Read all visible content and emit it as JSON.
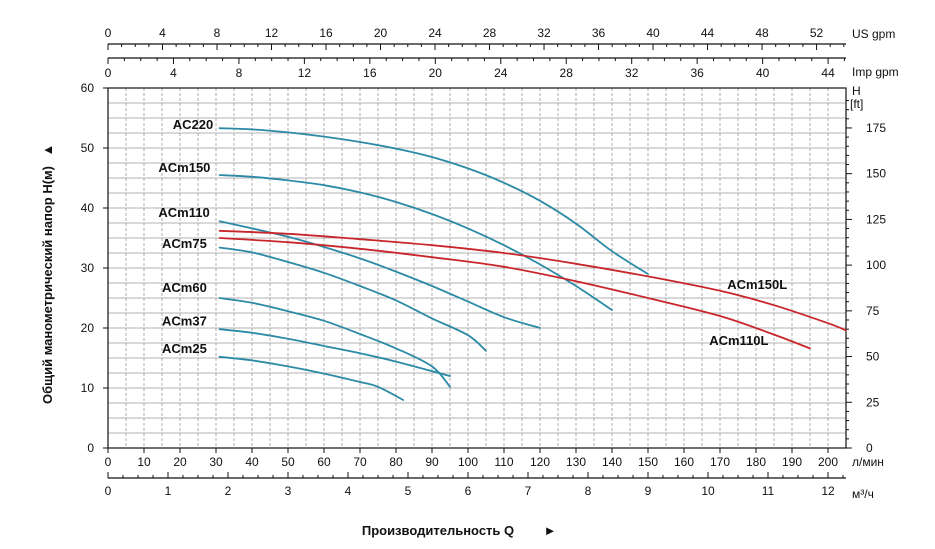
{
  "chart_data": {
    "type": "line",
    "title": "",
    "ylabel": "Общий манометрический напор H(м)",
    "ylabel_arrow": "▲",
    "xlabel": "Производительность Q",
    "xlabel_arrow": "►",
    "xlim": [
      0,
      205
    ],
    "ylim": [
      0,
      60
    ],
    "grid": true,
    "x_ticks": [
      0,
      10,
      20,
      30,
      40,
      50,
      60,
      70,
      80,
      90,
      100,
      110,
      120,
      130,
      140,
      150,
      160,
      170,
      180,
      190,
      200
    ],
    "x_unit": "л/мин",
    "y_ticks": [
      0,
      10,
      20,
      30,
      40,
      50,
      60
    ],
    "m3h_ticks": [
      0,
      1,
      2,
      3,
      4,
      5,
      6,
      7,
      8,
      9,
      10,
      11,
      12
    ],
    "m3h_unit": "м³/ч",
    "us_gpm_ticks": [
      0,
      4,
      8,
      12,
      16,
      20,
      24,
      28,
      32,
      36,
      40,
      44,
      48,
      52
    ],
    "us_gpm_unit": "US gpm",
    "imp_gpm_ticks": [
      0,
      4,
      8,
      12,
      16,
      20,
      24,
      28,
      32,
      36,
      40,
      44
    ],
    "imp_gpm_unit": "Imp gpm",
    "ft_ticks": [
      0,
      25,
      50,
      75,
      100,
      125,
      150,
      175
    ],
    "ft_unit": "H",
    "ft_unit2": "[ft]",
    "series": [
      {
        "name": "AC220",
        "color": "#2b8aa5",
        "label_pos": [
          18,
          53.2
        ],
        "points": [
          [
            31,
            53.3
          ],
          [
            40,
            53.1
          ],
          [
            50,
            52.6
          ],
          [
            60,
            51.9
          ],
          [
            70,
            51.0
          ],
          [
            80,
            49.9
          ],
          [
            90,
            48.5
          ],
          [
            100,
            46.6
          ],
          [
            110,
            44.2
          ],
          [
            120,
            41.2
          ],
          [
            130,
            37.4
          ],
          [
            140,
            32.8
          ],
          [
            150,
            29.0
          ]
        ]
      },
      {
        "name": "ACm150",
        "color": "#2b8aa5",
        "label_pos": [
          14,
          46
        ],
        "points": [
          [
            31,
            45.5
          ],
          [
            40,
            45.2
          ],
          [
            50,
            44.6
          ],
          [
            60,
            43.8
          ],
          [
            70,
            42.6
          ],
          [
            80,
            41.0
          ],
          [
            90,
            39.0
          ],
          [
            100,
            36.6
          ],
          [
            110,
            33.8
          ],
          [
            120,
            30.6
          ],
          [
            130,
            27.0
          ],
          [
            140,
            23.0
          ]
        ]
      },
      {
        "name": "ACm110",
        "color": "#2b8aa5",
        "label_pos": [
          14,
          38.5
        ],
        "points": [
          [
            31,
            37.8
          ],
          [
            40,
            36.6
          ],
          [
            50,
            35.2
          ],
          [
            60,
            33.5
          ],
          [
            70,
            31.6
          ],
          [
            80,
            29.4
          ],
          [
            90,
            27.0
          ],
          [
            100,
            24.4
          ],
          [
            110,
            21.8
          ],
          [
            120,
            20.0
          ]
        ]
      },
      {
        "name": "ACm75",
        "color": "#2b8aa5",
        "label_pos": [
          15,
          33.3
        ],
        "points": [
          [
            31,
            33.4
          ],
          [
            40,
            32.6
          ],
          [
            50,
            31.0
          ],
          [
            60,
            29.2
          ],
          [
            70,
            27.0
          ],
          [
            80,
            24.6
          ],
          [
            90,
            21.6
          ],
          [
            100,
            18.8
          ],
          [
            105,
            16.2
          ]
        ]
      },
      {
        "name": "ACm60",
        "color": "#2b8aa5",
        "label_pos": [
          15,
          26
        ],
        "points": [
          [
            31,
            25.0
          ],
          [
            40,
            24.2
          ],
          [
            50,
            22.8
          ],
          [
            60,
            21.2
          ],
          [
            70,
            19.0
          ],
          [
            80,
            16.6
          ],
          [
            90,
            13.6
          ],
          [
            95,
            10.2
          ]
        ]
      },
      {
        "name": "ACm37",
        "color": "#2b8aa5",
        "label_pos": [
          15,
          20.4
        ],
        "points": [
          [
            31,
            19.8
          ],
          [
            40,
            19.2
          ],
          [
            50,
            18.2
          ],
          [
            60,
            17.0
          ],
          [
            70,
            15.8
          ],
          [
            80,
            14.4
          ],
          [
            95,
            12.0
          ]
        ]
      },
      {
        "name": "ACm25",
        "color": "#2b8aa5",
        "label_pos": [
          15,
          15.8
        ],
        "points": [
          [
            31,
            15.2
          ],
          [
            40,
            14.6
          ],
          [
            50,
            13.6
          ],
          [
            60,
            12.4
          ],
          [
            70,
            11.0
          ],
          [
            75,
            10.2
          ],
          [
            82,
            8.0
          ]
        ]
      },
      {
        "name": "ACm150L",
        "color": "#c8262a",
        "label_pos": [
          172,
          26.5
        ],
        "points": [
          [
            31,
            36.2
          ],
          [
            50,
            35.7
          ],
          [
            70,
            34.8
          ],
          [
            90,
            33.8
          ],
          [
            110,
            32.5
          ],
          [
            130,
            30.7
          ],
          [
            150,
            28.6
          ],
          [
            170,
            26.2
          ],
          [
            185,
            23.8
          ],
          [
            200,
            20.8
          ],
          [
            205,
            19.6
          ]
        ]
      },
      {
        "name": "ACm110L",
        "color": "#c8262a",
        "label_pos": [
          167,
          17.2
        ],
        "points": [
          [
            31,
            35.0
          ],
          [
            50,
            34.3
          ],
          [
            70,
            33.2
          ],
          [
            90,
            31.8
          ],
          [
            110,
            30.2
          ],
          [
            130,
            27.8
          ],
          [
            150,
            25.0
          ],
          [
            170,
            22.0
          ],
          [
            185,
            18.9
          ],
          [
            195,
            16.6
          ]
        ]
      }
    ]
  }
}
